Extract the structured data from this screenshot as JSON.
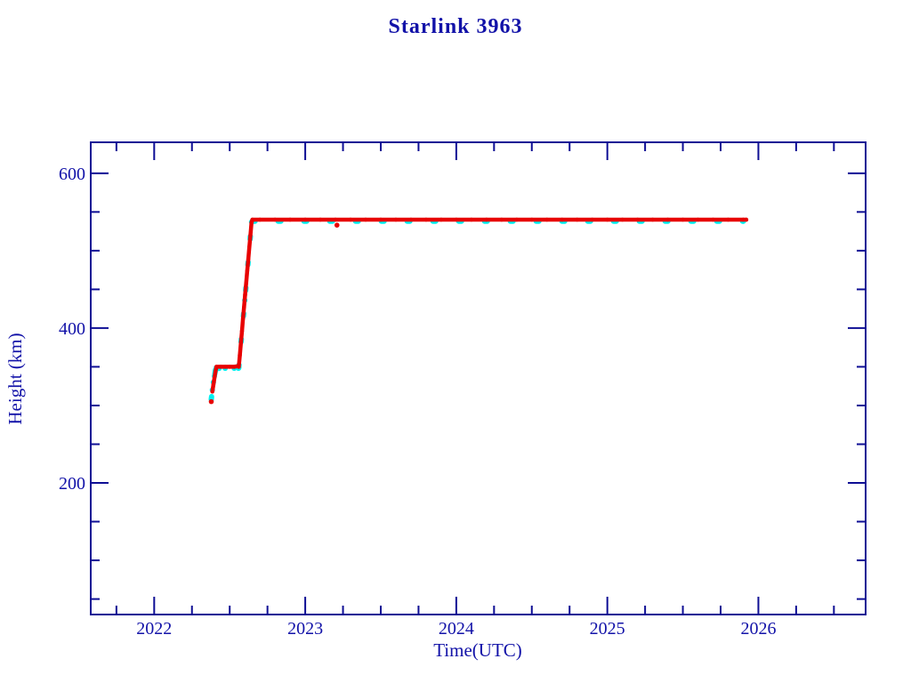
{
  "page": {
    "background": "#ffffff"
  },
  "chart_data": {
    "type": "scatter",
    "title": "Starlink 3963",
    "xlabel": "Time(UTC)",
    "ylabel": "Height (km)",
    "xlim": [
      2021.58,
      2026.71
    ],
    "ylim": [
      30,
      640
    ],
    "x_major_ticks": [
      2022,
      2023,
      2024,
      2025,
      2026
    ],
    "x_minor_step": 0.25,
    "y_major_ticks": [
      200,
      400,
      600
    ],
    "y_minor_step": 50,
    "grid": false,
    "legend": "none",
    "axis_color": "#0e0e94",
    "text_color": "#1212a8",
    "series": [
      {
        "name": "supplementary-track-cyan",
        "color": "#00f0f0",
        "width": 6,
        "runs": [
          [
            [
              2022.378,
              308
            ],
            [
              2022.385,
              320
            ],
            [
              2022.392,
              330
            ],
            [
              2022.399,
              338
            ],
            [
              2022.406,
              346
            ],
            [
              2022.412,
              349
            ]
          ],
          [
            [
              2022.412,
              348
            ],
            [
              2022.47,
              348
            ],
            [
              2022.53,
              348
            ],
            [
              2022.558,
              348
            ]
          ],
          [
            [
              2022.56,
              349
            ],
            [
              2022.6,
              436
            ],
            [
              2022.645,
              537
            ]
          ],
          [
            [
              2022.65,
              538
            ],
            [
              2025.9,
              538
            ]
          ]
        ],
        "dash": "3 26"
      },
      {
        "name": "primary-track-red",
        "color": "#e80000",
        "width": 4.5,
        "runs": [
          [
            [
              2022.378,
              305
            ]
          ],
          [
            [
              2022.385,
              318
            ],
            [
              2022.392,
              327
            ],
            [
              2022.399,
              336
            ],
            [
              2022.406,
              344
            ],
            [
              2022.412,
              350
            ],
            [
              2022.44,
              350
            ],
            [
              2022.47,
              350
            ],
            [
              2022.5,
              350
            ],
            [
              2022.53,
              350
            ],
            [
              2022.558,
              351
            ],
            [
              2022.56,
              350
            ],
            [
              2022.567,
              365
            ],
            [
              2022.574,
              381
            ],
            [
              2022.581,
              396
            ],
            [
              2022.588,
              412
            ],
            [
              2022.595,
              427
            ],
            [
              2022.602,
              443
            ],
            [
              2022.609,
              458
            ],
            [
              2022.616,
              474
            ],
            [
              2022.623,
              489
            ],
            [
              2022.63,
              505
            ],
            [
              2022.637,
              520
            ],
            [
              2022.644,
              536
            ],
            [
              2022.65,
              540
            ],
            [
              2022.7,
              540
            ],
            [
              2022.8,
              540
            ],
            [
              2022.9,
              540
            ],
            [
              2023.0,
              540
            ],
            [
              2023.1,
              540
            ],
            [
              2023.2,
              540
            ],
            [
              2023.3,
              540
            ],
            [
              2023.4,
              540
            ],
            [
              2023.5,
              540
            ],
            [
              2023.6,
              540
            ],
            [
              2023.7,
              540
            ],
            [
              2023.8,
              540
            ],
            [
              2023.9,
              540
            ],
            [
              2024.0,
              540
            ],
            [
              2024.1,
              540
            ],
            [
              2024.2,
              540
            ],
            [
              2024.3,
              540
            ],
            [
              2024.4,
              540
            ],
            [
              2024.5,
              540
            ],
            [
              2024.6,
              540
            ],
            [
              2024.7,
              540
            ],
            [
              2024.8,
              540
            ],
            [
              2024.9,
              540
            ],
            [
              2025.0,
              540
            ],
            [
              2025.1,
              540
            ],
            [
              2025.2,
              540
            ],
            [
              2025.3,
              540
            ],
            [
              2025.4,
              540
            ],
            [
              2025.5,
              540
            ],
            [
              2025.6,
              540
            ],
            [
              2025.7,
              540
            ],
            [
              2025.8,
              540
            ],
            [
              2025.9,
              540
            ],
            [
              2025.92,
              540
            ]
          ],
          [
            [
              2023.21,
              533
            ]
          ]
        ],
        "dash": null
      }
    ]
  }
}
